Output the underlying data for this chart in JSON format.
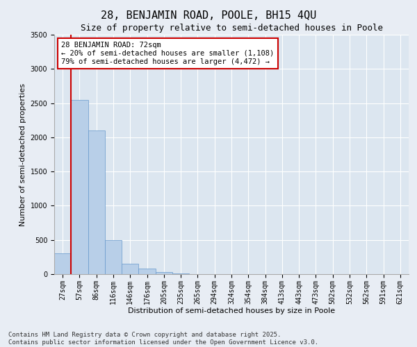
{
  "title": "28, BENJAMIN ROAD, POOLE, BH15 4QU",
  "subtitle": "Size of property relative to semi-detached houses in Poole",
  "xlabel": "Distribution of semi-detached houses by size in Poole",
  "ylabel": "Number of semi-detached properties",
  "categories": [
    "27sqm",
    "57sqm",
    "86sqm",
    "116sqm",
    "146sqm",
    "176sqm",
    "205sqm",
    "235sqm",
    "265sqm",
    "294sqm",
    "324sqm",
    "354sqm",
    "384sqm",
    "413sqm",
    "443sqm",
    "473sqm",
    "502sqm",
    "532sqm",
    "562sqm",
    "591sqm",
    "621sqm"
  ],
  "values": [
    300,
    2550,
    2100,
    500,
    150,
    80,
    30,
    15,
    5,
    0,
    0,
    0,
    0,
    0,
    0,
    0,
    0,
    0,
    0,
    0,
    0
  ],
  "bar_color": "#b8cfe8",
  "bar_edge_color": "#6699cc",
  "property_line_color": "#cc0000",
  "annotation_text": "28 BENJAMIN ROAD: 72sqm\n← 20% of semi-detached houses are smaller (1,108)\n79% of semi-detached houses are larger (4,472) →",
  "annotation_box_color": "#ffffff",
  "annotation_box_edge_color": "#cc0000",
  "ylim": [
    0,
    3500
  ],
  "yticks": [
    0,
    500,
    1000,
    1500,
    2000,
    2500,
    3000,
    3500
  ],
  "background_color": "#e8edf4",
  "plot_background_color": "#dce6f0",
  "grid_color": "#ffffff",
  "footer_line1": "Contains HM Land Registry data © Crown copyright and database right 2025.",
  "footer_line2": "Contains public sector information licensed under the Open Government Licence v3.0.",
  "title_fontsize": 11,
  "subtitle_fontsize": 9,
  "axis_label_fontsize": 8,
  "tick_fontsize": 7,
  "annotation_fontsize": 7.5,
  "footer_fontsize": 6.5
}
